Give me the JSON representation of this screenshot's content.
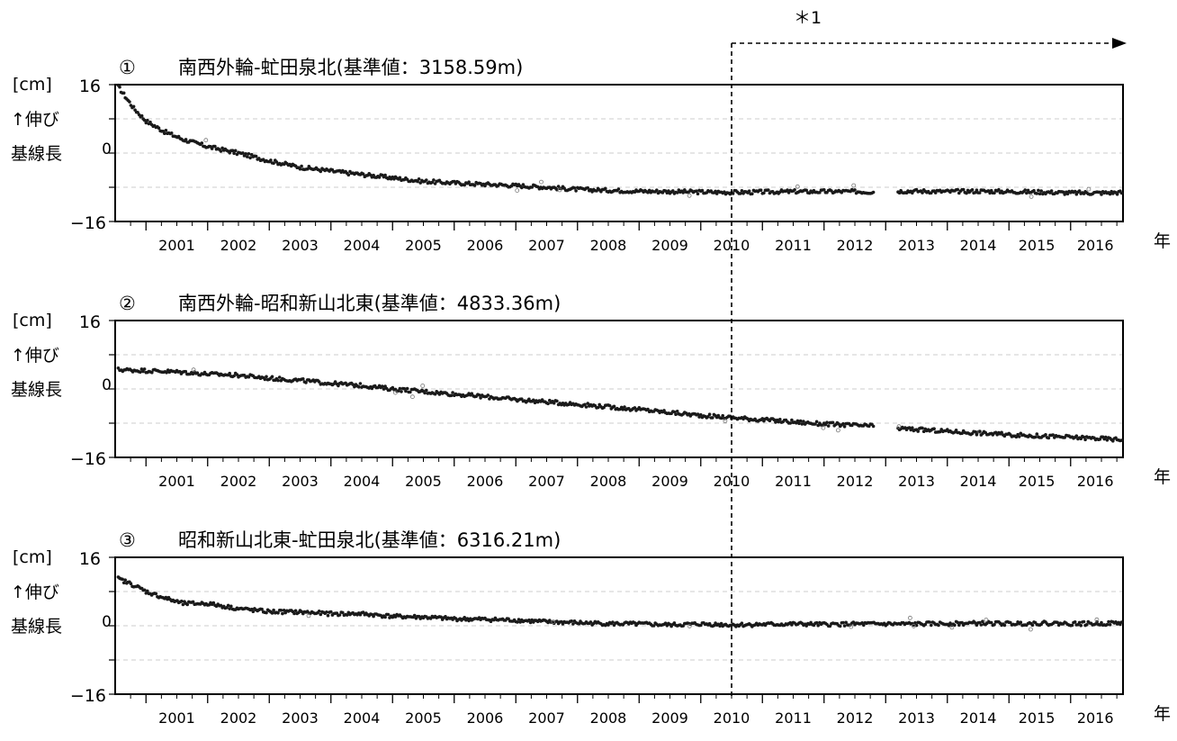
{
  "annotation": {
    "label": "＊1",
    "start_year": 2010.5
  },
  "common": {
    "unit_label": "[cm]",
    "up_label": "↑伸び",
    "y_label": "基線長",
    "year_unit": "年",
    "y_ticks": [
      "16",
      "0",
      "−16"
    ]
  },
  "colors": {
    "points": "#1a1a1a",
    "grid": "#cccccc",
    "frame": "#000000"
  },
  "chart_data": [
    {
      "type": "scatter",
      "title": "南西外輪-虻田泉北(基準値：3158.59m)",
      "marker": "①",
      "ylim": [
        -16,
        16
      ],
      "xlim": [
        2000.5,
        2016.85
      ],
      "x_tick_labels": [
        "2001",
        "2002",
        "2003",
        "2004",
        "2005",
        "2006",
        "2007",
        "2008",
        "2009",
        "2010",
        "2011",
        "2012",
        "2013",
        "2014",
        "2015",
        "2016"
      ],
      "grid": true,
      "gaps": [
        [
          2012.8,
          2013.2
        ]
      ],
      "series": [
        {
          "x": [
            2000.55,
            2000.8,
            2001.0,
            2001.3,
            2001.6,
            2002.0,
            2002.5,
            2003.0,
            2003.5,
            2004.0,
            2004.5,
            2005.0,
            2005.5,
            2006.0,
            2006.5,
            2007.0,
            2007.5,
            2008.0,
            2008.5,
            2009.0,
            2009.5,
            2010.0,
            2010.5,
            2011.0,
            2011.5,
            2012.0,
            2012.5,
            2012.8,
            2013.2,
            2013.5,
            2014.0,
            2014.5,
            2015.0,
            2015.5,
            2016.0,
            2016.5,
            2016.85
          ],
          "y": [
            15.5,
            10.5,
            7.5,
            5.0,
            3.2,
            1.5,
            0.0,
            -1.8,
            -3.3,
            -4.2,
            -5.0,
            -5.8,
            -6.6,
            -7.0,
            -7.3,
            -7.6,
            -8.0,
            -8.5,
            -8.7,
            -8.9,
            -9.0,
            -9.1,
            -9.2,
            -9.1,
            -9.0,
            -9.0,
            -9.0,
            -9.1,
            -8.9,
            -8.9,
            -9.0,
            -8.9,
            -9.0,
            -9.1,
            -9.3,
            -9.3,
            -9.2
          ]
        }
      ]
    },
    {
      "type": "scatter",
      "title": "南西外輪-昭和新山北東(基準値：4833.36m)",
      "marker": "②",
      "ylim": [
        -16,
        16
      ],
      "xlim": [
        2000.5,
        2016.85
      ],
      "x_tick_labels": [
        "2001",
        "2002",
        "2003",
        "2004",
        "2005",
        "2006",
        "2007",
        "2008",
        "2009",
        "2010",
        "2011",
        "2012",
        "2013",
        "2014",
        "2015",
        "2016"
      ],
      "grid": true,
      "gaps": [
        [
          2012.8,
          2013.2
        ]
      ],
      "series": [
        {
          "x": [
            2000.55,
            2001.0,
            2001.5,
            2002.0,
            2002.5,
            2003.0,
            2003.5,
            2004.0,
            2004.5,
            2005.0,
            2005.5,
            2006.0,
            2006.5,
            2007.0,
            2007.5,
            2008.0,
            2008.5,
            2009.0,
            2009.5,
            2010.0,
            2010.5,
            2011.0,
            2011.5,
            2012.0,
            2012.5,
            2012.8,
            2013.2,
            2013.5,
            2014.0,
            2014.5,
            2015.0,
            2015.5,
            2016.0,
            2016.5,
            2016.85
          ],
          "y": [
            4.5,
            4.3,
            4.0,
            3.5,
            3.2,
            2.5,
            2.0,
            1.3,
            0.8,
            0.0,
            -0.6,
            -1.2,
            -1.8,
            -2.5,
            -3.0,
            -3.6,
            -4.2,
            -4.8,
            -5.5,
            -6.2,
            -6.7,
            -7.2,
            -7.7,
            -8.2,
            -8.5,
            -8.7,
            -9.2,
            -9.5,
            -9.9,
            -10.3,
            -10.7,
            -11.0,
            -11.3,
            -11.6,
            -11.9
          ]
        }
      ]
    },
    {
      "type": "scatter",
      "title": "昭和新山北東-虻田泉北(基準値：6316.21m)",
      "marker": "③",
      "ylim": [
        -16,
        16
      ],
      "xlim": [
        2000.5,
        2016.85
      ],
      "x_tick_labels": [
        "2001",
        "2002",
        "2003",
        "2004",
        "2005",
        "2006",
        "2007",
        "2008",
        "2009",
        "2010",
        "2011",
        "2012",
        "2013",
        "2014",
        "2015",
        "2016"
      ],
      "grid": true,
      "gaps": [],
      "series": [
        {
          "x": [
            2000.55,
            2000.8,
            2001.0,
            2001.3,
            2001.6,
            2002.0,
            2002.5,
            2003.0,
            2003.5,
            2004.0,
            2004.5,
            2005.0,
            2005.5,
            2006.0,
            2006.5,
            2007.0,
            2007.5,
            2008.0,
            2008.5,
            2009.0,
            2009.5,
            2010.0,
            2010.5,
            2011.0,
            2011.5,
            2012.0,
            2012.5,
            2013.0,
            2013.5,
            2014.0,
            2014.5,
            2015.0,
            2015.5,
            2016.0,
            2016.5,
            2016.85
          ],
          "y": [
            11.0,
            9.5,
            8.0,
            6.5,
            5.2,
            5.2,
            4.0,
            3.3,
            3.2,
            2.8,
            2.8,
            2.2,
            2.0,
            1.6,
            1.5,
            1.3,
            0.9,
            0.7,
            0.5,
            0.4,
            0.2,
            0.4,
            0.2,
            0.3,
            0.4,
            0.3,
            0.4,
            0.4,
            0.4,
            0.5,
            0.6,
            0.5,
            0.6,
            0.5,
            0.5,
            0.7
          ]
        }
      ]
    }
  ]
}
